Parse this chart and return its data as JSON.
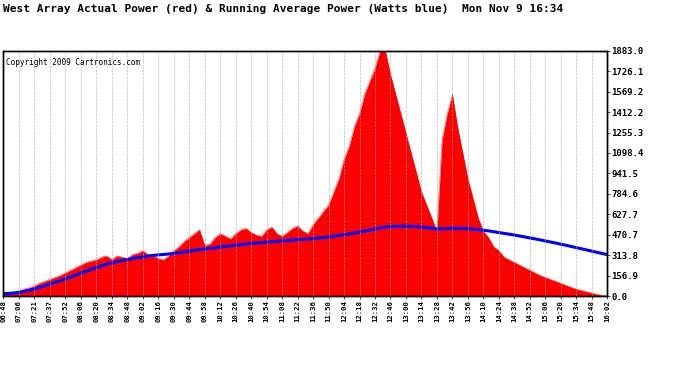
{
  "title": "West Array Actual Power (red) & Running Average Power (Watts blue)  Mon Nov 9 16:34",
  "copyright": "Copyright 2009 Cartronics.com",
  "ylabel_right_ticks": [
    0.0,
    156.9,
    313.8,
    470.7,
    627.7,
    784.6,
    941.5,
    1098.4,
    1255.3,
    1412.2,
    1569.2,
    1726.1,
    1883.0
  ],
  "ymax": 1883.0,
  "ymin": 0.0,
  "plot_bg_color": "#ffffff",
  "bar_color": "#ff0000",
  "line_color": "#0000ff",
  "grid_color": "#aaaaaa",
  "x_tick_labels": [
    "06:48",
    "07:06",
    "07:21",
    "07:37",
    "07:52",
    "08:06",
    "08:20",
    "08:34",
    "08:48",
    "09:02",
    "09:16",
    "09:30",
    "09:44",
    "09:58",
    "10:12",
    "10:26",
    "10:40",
    "10:54",
    "11:08",
    "11:22",
    "11:36",
    "11:50",
    "12:04",
    "12:18",
    "12:32",
    "12:46",
    "13:00",
    "13:14",
    "13:28",
    "13:42",
    "13:56",
    "14:10",
    "14:24",
    "14:38",
    "14:52",
    "15:06",
    "15:20",
    "15:34",
    "15:48",
    "16:02"
  ],
  "actual_power": [
    20,
    25,
    30,
    40,
    55,
    65,
    80,
    100,
    115,
    130,
    145,
    160,
    180,
    200,
    220,
    240,
    260,
    270,
    280,
    300,
    310,
    280,
    310,
    300,
    290,
    320,
    330,
    350,
    320,
    310,
    290,
    280,
    310,
    350,
    380,
    420,
    450,
    480,
    510,
    390,
    400,
    450,
    480,
    460,
    440,
    480,
    510,
    520,
    490,
    470,
    460,
    510,
    530,
    480,
    460,
    490,
    520,
    540,
    500,
    480,
    550,
    600,
    650,
    700,
    800,
    900,
    1050,
    1150,
    1300,
    1400,
    1550,
    1650,
    1750,
    1883,
    1883,
    1700,
    1550,
    1400,
    1250,
    1100,
    950,
    800,
    700,
    600,
    500,
    1200,
    1400,
    1550,
    1300,
    1100,
    900,
    750,
    600,
    500,
    450,
    380,
    350,
    300,
    280,
    260,
    240,
    220,
    200,
    180,
    160,
    145,
    130,
    115,
    100,
    85,
    70,
    55,
    45,
    35,
    25,
    15,
    8,
    3
  ],
  "running_avg": [
    20,
    22,
    25,
    30,
    38,
    46,
    56,
    68,
    80,
    93,
    106,
    119,
    133,
    147,
    162,
    177,
    192,
    206,
    219,
    233,
    246,
    255,
    265,
    274,
    281,
    288,
    295,
    302,
    308,
    313,
    317,
    320,
    324,
    329,
    334,
    340,
    346,
    352,
    358,
    362,
    366,
    371,
    377,
    382,
    386,
    391,
    396,
    401,
    405,
    408,
    411,
    415,
    419,
    422,
    425,
    428,
    431,
    434,
    437,
    439,
    442,
    446,
    450,
    455,
    460,
    466,
    472,
    478,
    485,
    492,
    500,
    508,
    516,
    524,
    530,
    534,
    536,
    537,
    537,
    536,
    534,
    530,
    526,
    521,
    516,
    516,
    518,
    521,
    521,
    520,
    518,
    515,
    511,
    506,
    501,
    495,
    488,
    482,
    476,
    469,
    462,
    455,
    447,
    440,
    432,
    424,
    416,
    408,
    399,
    391,
    382,
    373,
    364,
    355,
    346,
    337,
    328,
    319
  ]
}
